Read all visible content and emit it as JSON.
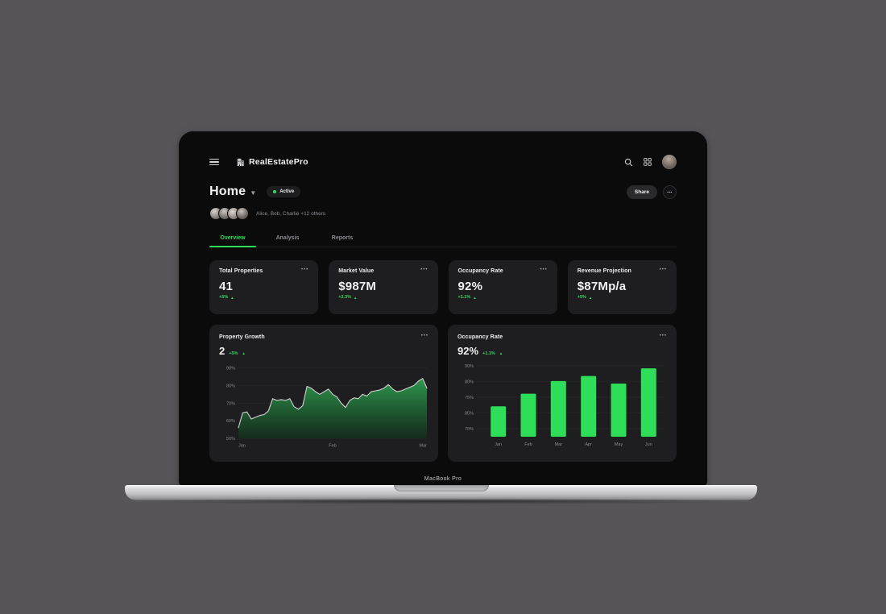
{
  "device": {
    "bezel_label": "MacBook Pro"
  },
  "colors": {
    "accent_green": "#2EDE58",
    "area_line": "#D6CFD2",
    "area_fill_top": "#2F9E50",
    "area_fill_bottom": "#122D1A",
    "grid_line": "#29292C",
    "tick_text": "#8B8B90",
    "card_bg": "#1E1E20",
    "app_bg": "#0B0B0C"
  },
  "icons": {
    "ellipsis": "•••",
    "arrow_up": "▲"
  },
  "header": {
    "app_name": "RealEstatePro"
  },
  "page": {
    "title": "Home",
    "status_badge": "Active",
    "collaborators": "Alice, Bob, Charlie +12 others",
    "share_label": "Share"
  },
  "tabs": [
    {
      "label": "Overview",
      "active": true
    },
    {
      "label": "Analysis",
      "active": false
    },
    {
      "label": "Reports",
      "active": false
    }
  ],
  "stat_cards": [
    {
      "title": "Total Properties",
      "value": "41",
      "change": "+5%"
    },
    {
      "title": "Market Value",
      "value": "$987M",
      "change": "+2.3%"
    },
    {
      "title": "Occupancy Rate",
      "value": "92%",
      "change": "+1.1%"
    },
    {
      "title": "Revenue Projection",
      "value": "$87Mp/a",
      "change": "+5%"
    }
  ],
  "chart_data": [
    {
      "type": "area",
      "title": "Property Growth",
      "value": "2",
      "change": "+5%",
      "xlabel": "",
      "ylabel": "",
      "x_ticks": [
        "Jan",
        "Feb",
        "Mar"
      ],
      "y_ticks": [
        "90%",
        "80%",
        "70%",
        "60%",
        "50%"
      ],
      "y_tick_values": [
        90,
        80,
        70,
        60,
        50
      ],
      "ylim": [
        50,
        93
      ],
      "grid": true,
      "legend": false,
      "values": [
        56,
        64.5,
        65,
        61,
        62,
        63,
        63.5,
        65.5,
        72.5,
        71.5,
        72,
        71.5,
        72.5,
        68,
        66.5,
        68.5,
        79.5,
        78.5,
        76.5,
        75,
        76.5,
        78,
        75,
        73.5,
        70,
        67.5,
        71.5,
        73,
        72.5,
        75,
        74,
        76.5,
        77,
        77.5,
        78.5,
        80.5,
        78,
        76.5,
        77,
        78,
        79,
        80,
        82.5,
        84,
        78.5
      ]
    },
    {
      "type": "bar",
      "title": "Occupancy Rate",
      "value": "92%",
      "change": "+1.1%",
      "xlabel": "",
      "ylabel": "",
      "categories": [
        "Jan",
        "Feb",
        "Mar",
        "Apr",
        "May",
        "Jun"
      ],
      "values": [
        77,
        82,
        87,
        89,
        86,
        92
      ],
      "y_ticks": [
        "90%",
        "80%",
        "75%",
        "85%",
        "70%"
      ],
      "ylim": [
        65,
        93
      ],
      "grid": true,
      "legend": false
    }
  ]
}
